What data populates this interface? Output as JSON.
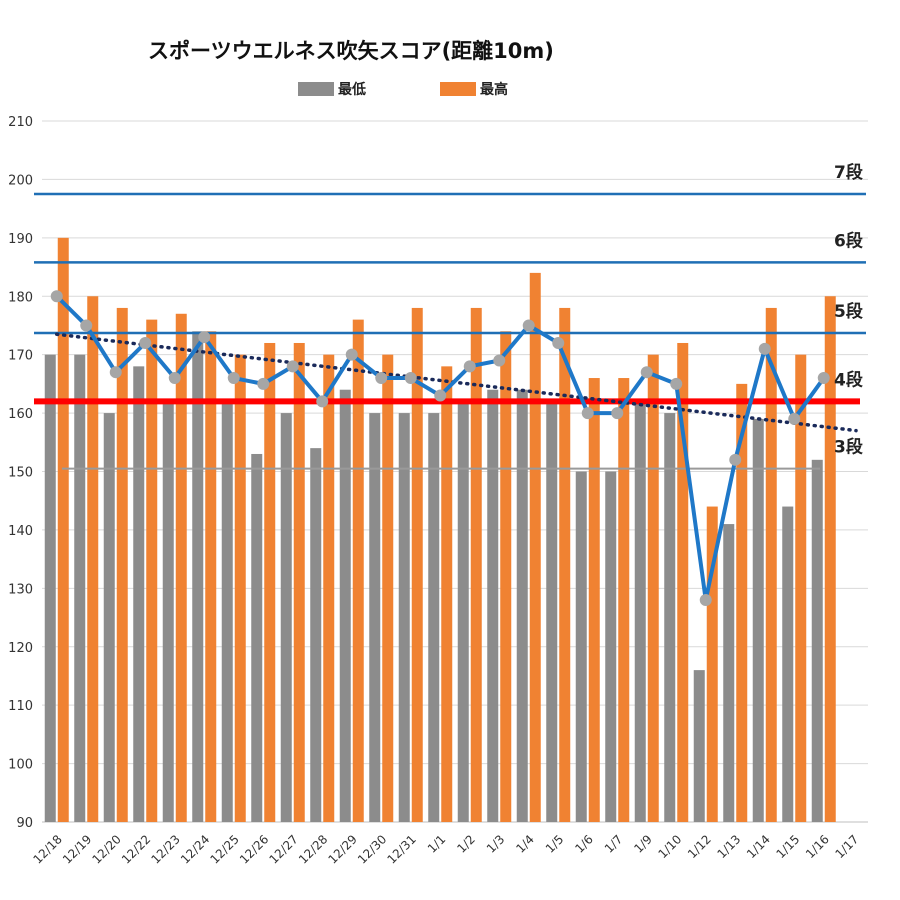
{
  "chart_data": {
    "type": "bar",
    "title": "スポーツウエルネス吹矢スコア(距離10m)",
    "categories": [
      "12/18",
      "12/19",
      "12/20",
      "12/22",
      "12/23",
      "12/24",
      "12/25",
      "12/26",
      "12/27",
      "12/28",
      "12/29",
      "12/30",
      "12/31",
      "1/1",
      "1/2",
      "1/3",
      "1/4",
      "1/5",
      "1/6",
      "1/7",
      "1/9",
      "1/10",
      "1/12",
      "1/13",
      "1/14",
      "1/15",
      "1/16",
      "1/17"
    ],
    "series": [
      {
        "name": "最低",
        "color": "#8c8c8c",
        "values": [
          170,
          170,
          160,
          168,
          162,
          174,
          162,
          153,
          160,
          154,
          164,
          160,
          160,
          160,
          162,
          164,
          164,
          162,
          150,
          150,
          162,
          160,
          116,
          141,
          159,
          144,
          152,
          null
        ]
      },
      {
        "name": "最高",
        "color": "#f08232",
        "values": [
          190,
          180,
          178,
          176,
          177,
          174,
          170,
          172,
          172,
          170,
          176,
          170,
          178,
          168,
          178,
          174,
          184,
          178,
          166,
          166,
          170,
          172,
          144,
          165,
          178,
          170,
          180,
          null
        ]
      },
      {
        "name": "",
        "color": "#1f78c8",
        "kind": "line",
        "values": [
          180,
          175,
          167,
          172,
          166,
          173,
          166,
          165,
          168,
          162,
          170,
          166,
          166,
          163,
          168,
          169,
          175,
          172,
          160,
          160,
          167,
          165,
          128,
          152,
          171,
          159,
          166,
          null
        ]
      }
    ],
    "trendline": {
      "from": 173.5,
      "to": 157,
      "color": "#1a2a5a"
    },
    "dan_lines": [
      {
        "label": "3段",
        "value": 150.5,
        "color": "#9a9a9a"
      },
      {
        "label": "4段",
        "value": 162,
        "color": "#ff0000"
      },
      {
        "label": "5段",
        "value": 173.7,
        "color": "#1f6fb5"
      },
      {
        "label": "6段",
        "value": 185.8,
        "color": "#1f6fb5"
      },
      {
        "label": "7段",
        "value": 197.5,
        "color": "#1f6fb5"
      }
    ],
    "ylim": [
      90,
      210
    ],
    "yticks": [
      90,
      100,
      110,
      120,
      130,
      140,
      150,
      160,
      170,
      180,
      190,
      200,
      210
    ],
    "grid": true,
    "legend_position": "top"
  }
}
